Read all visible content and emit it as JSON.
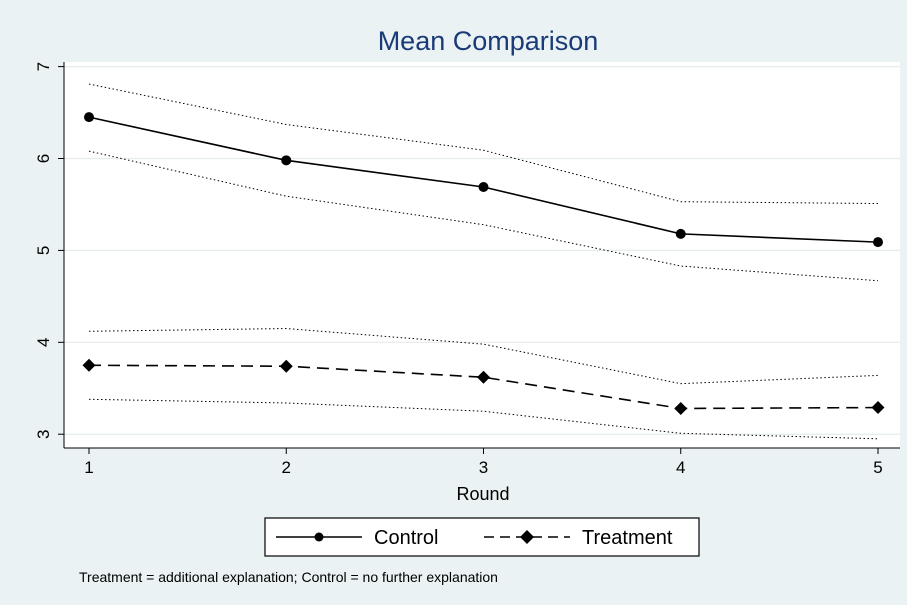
{
  "chart_data": {
    "type": "line",
    "title": "Mean Comparison",
    "xlabel": "Round",
    "ylabel": "",
    "x": [
      1,
      2,
      3,
      4,
      5
    ],
    "xlim": [
      1,
      5
    ],
    "ylim": [
      2.85,
      7.05
    ],
    "x_ticks": [
      "1",
      "2",
      "3",
      "4",
      "5"
    ],
    "y_ticks": [
      "3",
      "4",
      "5",
      "6",
      "7"
    ],
    "grid": true,
    "legend_position": "bottom",
    "series": [
      {
        "name": "Control",
        "values": [
          6.45,
          5.98,
          5.69,
          5.18,
          5.09
        ],
        "ci_upper": [
          6.81,
          6.37,
          6.09,
          5.53,
          5.51
        ],
        "ci_lower": [
          6.08,
          5.59,
          5.28,
          4.83,
          4.67
        ],
        "line_style": "solid",
        "marker": "circle",
        "color": "#000000"
      },
      {
        "name": "Treatment",
        "values": [
          3.75,
          3.74,
          3.62,
          3.28,
          3.29
        ],
        "ci_upper": [
          4.12,
          4.15,
          3.98,
          3.55,
          3.64
        ],
        "ci_lower": [
          3.38,
          3.34,
          3.25,
          3.01,
          2.95
        ],
        "line_style": "dashed",
        "marker": "diamond",
        "color": "#000000"
      }
    ],
    "note": "Treatment = additional explanation; Control = no further explanation"
  }
}
